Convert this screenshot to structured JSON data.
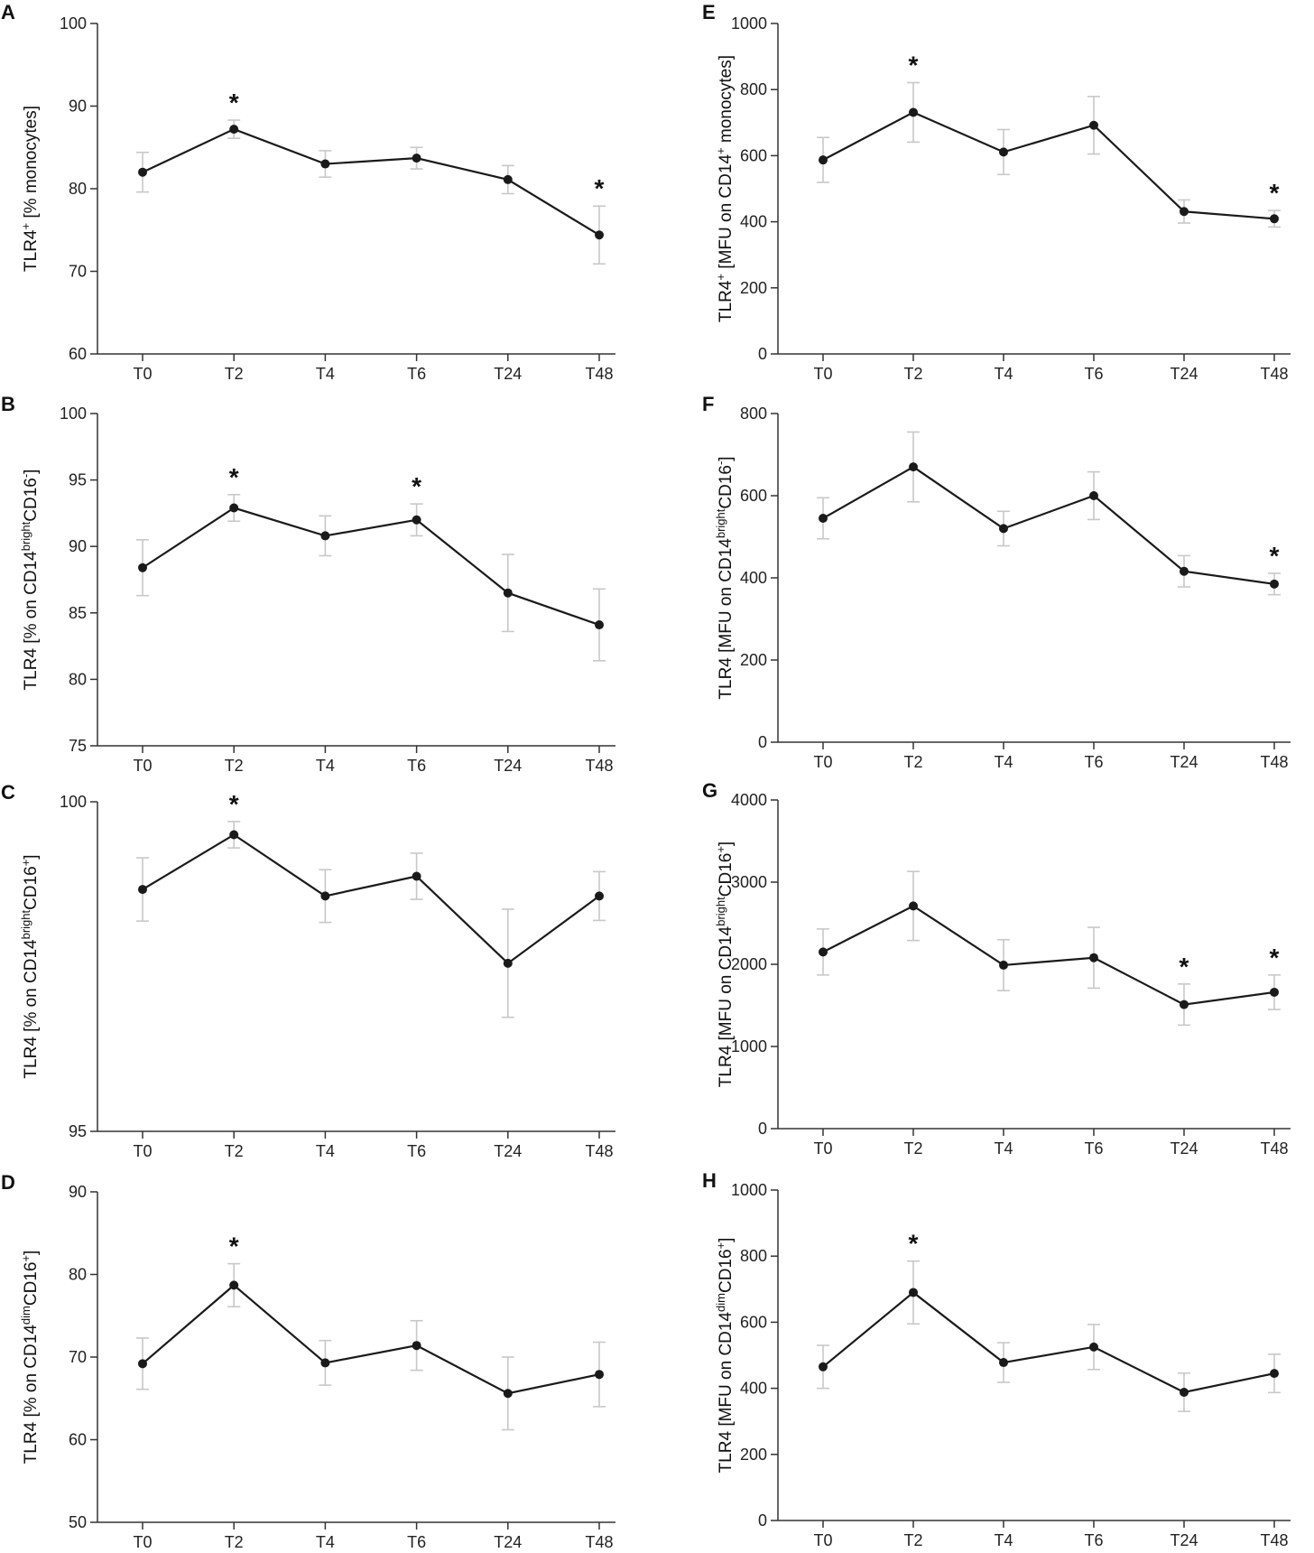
{
  "chart_data": [
    {
      "panel": "A",
      "type": "line",
      "categories": [
        "T0",
        "T2",
        "T4",
        "T6",
        "T24",
        "T48"
      ],
      "values": [
        82.0,
        87.2,
        83.0,
        83.7,
        81.1,
        74.4
      ],
      "errors": [
        2.4,
        1.1,
        1.6,
        1.3,
        1.7,
        3.5
      ],
      "yticks": [
        60,
        70,
        80,
        90,
        100
      ],
      "ylim": [
        60,
        100
      ],
      "ylabel": {
        "main": "TLR4",
        "sup": "+",
        "rest": " [% monocytes]"
      },
      "stars": [
        "T2",
        "T48"
      ]
    },
    {
      "panel": "B",
      "type": "line",
      "categories": [
        "T0",
        "T2",
        "T4",
        "T6",
        "T24",
        "T48"
      ],
      "values": [
        88.4,
        92.9,
        90.8,
        92.0,
        86.5,
        84.1
      ],
      "errors": [
        2.1,
        1.0,
        1.5,
        1.2,
        2.9,
        2.7
      ],
      "yticks": [
        75,
        80,
        85,
        90,
        95,
        100
      ],
      "ylim": [
        75,
        100
      ],
      "ylabel": {
        "main": "TLR4 [% on CD14",
        "sup": "bright",
        "rest": "CD16",
        "sup2": "-",
        "end": "]"
      },
      "stars": [
        "T2",
        "T6"
      ]
    },
    {
      "panel": "C",
      "type": "line",
      "categories": [
        "T0",
        "T2",
        "T4",
        "T6",
        "T24",
        "T48"
      ],
      "values": [
        98.67,
        99.5,
        98.57,
        98.87,
        97.55,
        98.57
      ],
      "errors": [
        0.48,
        0.2,
        0.4,
        0.35,
        0.82,
        0.37
      ],
      "yticks": [
        95,
        100
      ],
      "ylim": [
        95,
        100
      ],
      "ylabel": {
        "main": "TLR4 [% on CD14",
        "sup": "bright",
        "rest": "CD16",
        "sup2": "+",
        "end": "]"
      },
      "stars": [
        "T2"
      ]
    },
    {
      "panel": "D",
      "type": "line",
      "categories": [
        "T0",
        "T2",
        "T4",
        "T6",
        "T24",
        "T48"
      ],
      "values": [
        69.2,
        78.7,
        69.3,
        71.4,
        65.6,
        67.9
      ],
      "errors": [
        3.1,
        2.6,
        2.7,
        3.0,
        4.4,
        3.9
      ],
      "yticks": [
        50,
        60,
        70,
        80,
        90
      ],
      "ylim": [
        50,
        90
      ],
      "ylabel": {
        "main": "TLR4 [% on CD14",
        "sup": "dim",
        "rest": "CD16",
        "sup2": "+",
        "end": "]"
      },
      "stars": [
        "T2"
      ]
    },
    {
      "panel": "E",
      "type": "line",
      "categories": [
        "T0",
        "T2",
        "T4",
        "T6",
        "T24",
        "T48"
      ],
      "values": [
        587,
        731,
        611,
        692,
        431,
        409
      ],
      "errors": [
        68,
        90,
        68,
        87,
        35,
        25
      ],
      "yticks": [
        0,
        200,
        400,
        600,
        800,
        1000
      ],
      "ylim": [
        0,
        1000
      ],
      "ylabel": {
        "main": "TLR4",
        "sup": "+",
        "rest": " [MFU on CD14",
        "sup2": "+",
        "end": " monocytes]"
      },
      "stars": [
        "T2",
        "T48"
      ]
    },
    {
      "panel": "F",
      "type": "line",
      "categories": [
        "T0",
        "T2",
        "T4",
        "T6",
        "T24",
        "T48"
      ],
      "values": [
        545,
        670,
        520,
        600,
        416,
        385
      ],
      "errors": [
        50,
        85,
        42,
        58,
        38,
        26
      ],
      "yticks": [
        0,
        200,
        400,
        600,
        800
      ],
      "ylim": [
        0,
        800
      ],
      "ylabel": {
        "main": "TLR4 [MFU on CD14",
        "sup": "bright",
        "rest": "CD16",
        "sup2": "-",
        "end": "]"
      },
      "stars": [
        "T48"
      ]
    },
    {
      "panel": "G",
      "type": "line",
      "categories": [
        "T0",
        "T2",
        "T4",
        "T6",
        "T24",
        "T48"
      ],
      "values": [
        2150,
        2710,
        1990,
        2080,
        1510,
        1660
      ],
      "errors": [
        280,
        420,
        310,
        370,
        250,
        210
      ],
      "yticks": [
        0,
        1000,
        2000,
        3000,
        4000
      ],
      "ylim": [
        0,
        4000
      ],
      "ylabel": {
        "main": "TLR4 [MFU on CD14",
        "sup": "bright",
        "rest": "CD16",
        "sup2": "+",
        "end": "]"
      },
      "stars": [
        "T24",
        "T48"
      ]
    },
    {
      "panel": "H",
      "type": "line",
      "categories": [
        "T0",
        "T2",
        "T4",
        "T6",
        "T24",
        "T48"
      ],
      "values": [
        465,
        690,
        478,
        525,
        388,
        445
      ],
      "errors": [
        65,
        95,
        60,
        68,
        58,
        58
      ],
      "yticks": [
        0,
        200,
        400,
        600,
        800,
        1000
      ],
      "ylim": [
        0,
        1000
      ],
      "ylabel": {
        "main": "TLR4 [MFU on CD14",
        "sup": "dim",
        "rest": "CD16",
        "sup2": "+",
        "end": "]"
      },
      "stars": [
        "T2"
      ]
    }
  ],
  "star_symbol": "*",
  "colors": {
    "line": "#1a1a1a",
    "error": "#c8c8c8",
    "axis": "#333333"
  }
}
